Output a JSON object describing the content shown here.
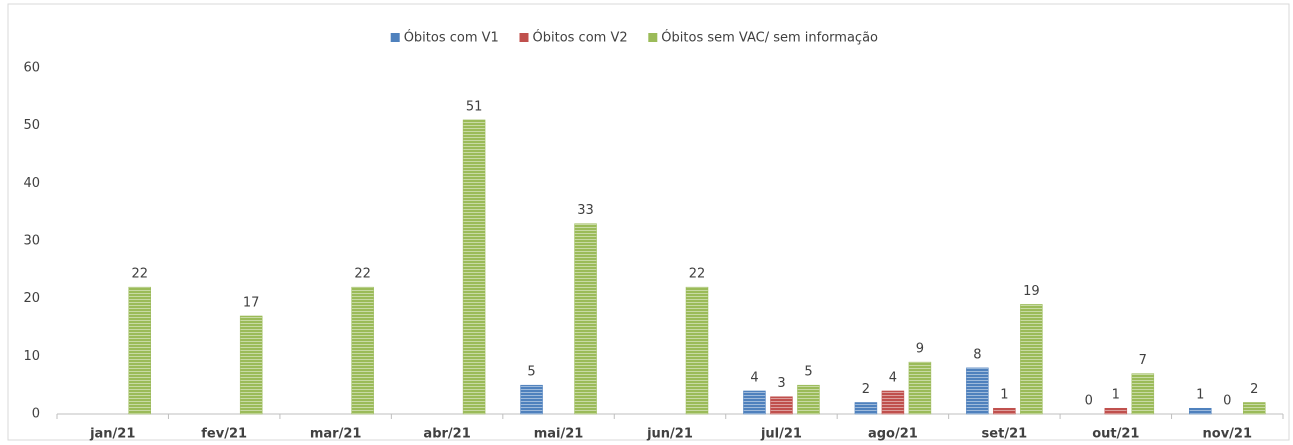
{
  "chart_data": {
    "type": "bar",
    "categories": [
      "jan/21",
      "fev/21",
      "mar/21",
      "abr/21",
      "mai/21",
      "jun/21",
      "jul/21",
      "ago/21",
      "set/21",
      "out/21",
      "nov/21"
    ],
    "series": [
      {
        "name": "Óbitos com V1",
        "color": "#4f81bd",
        "values": [
          null,
          null,
          null,
          null,
          5,
          null,
          4,
          2,
          8,
          0,
          1
        ]
      },
      {
        "name": "Óbitos com V2",
        "color": "#c0504d",
        "values": [
          null,
          null,
          null,
          null,
          null,
          null,
          3,
          4,
          1,
          1,
          0
        ]
      },
      {
        "name": "Óbitos sem VAC/ sem informação",
        "color": "#9bbb59",
        "values": [
          22,
          17,
          22,
          51,
          33,
          22,
          5,
          9,
          19,
          7,
          2
        ]
      }
    ],
    "ylim": [
      0,
      60
    ],
    "yticks": [
      0,
      10,
      20,
      30,
      40,
      50,
      60
    ],
    "grid": false,
    "legend": "top"
  }
}
